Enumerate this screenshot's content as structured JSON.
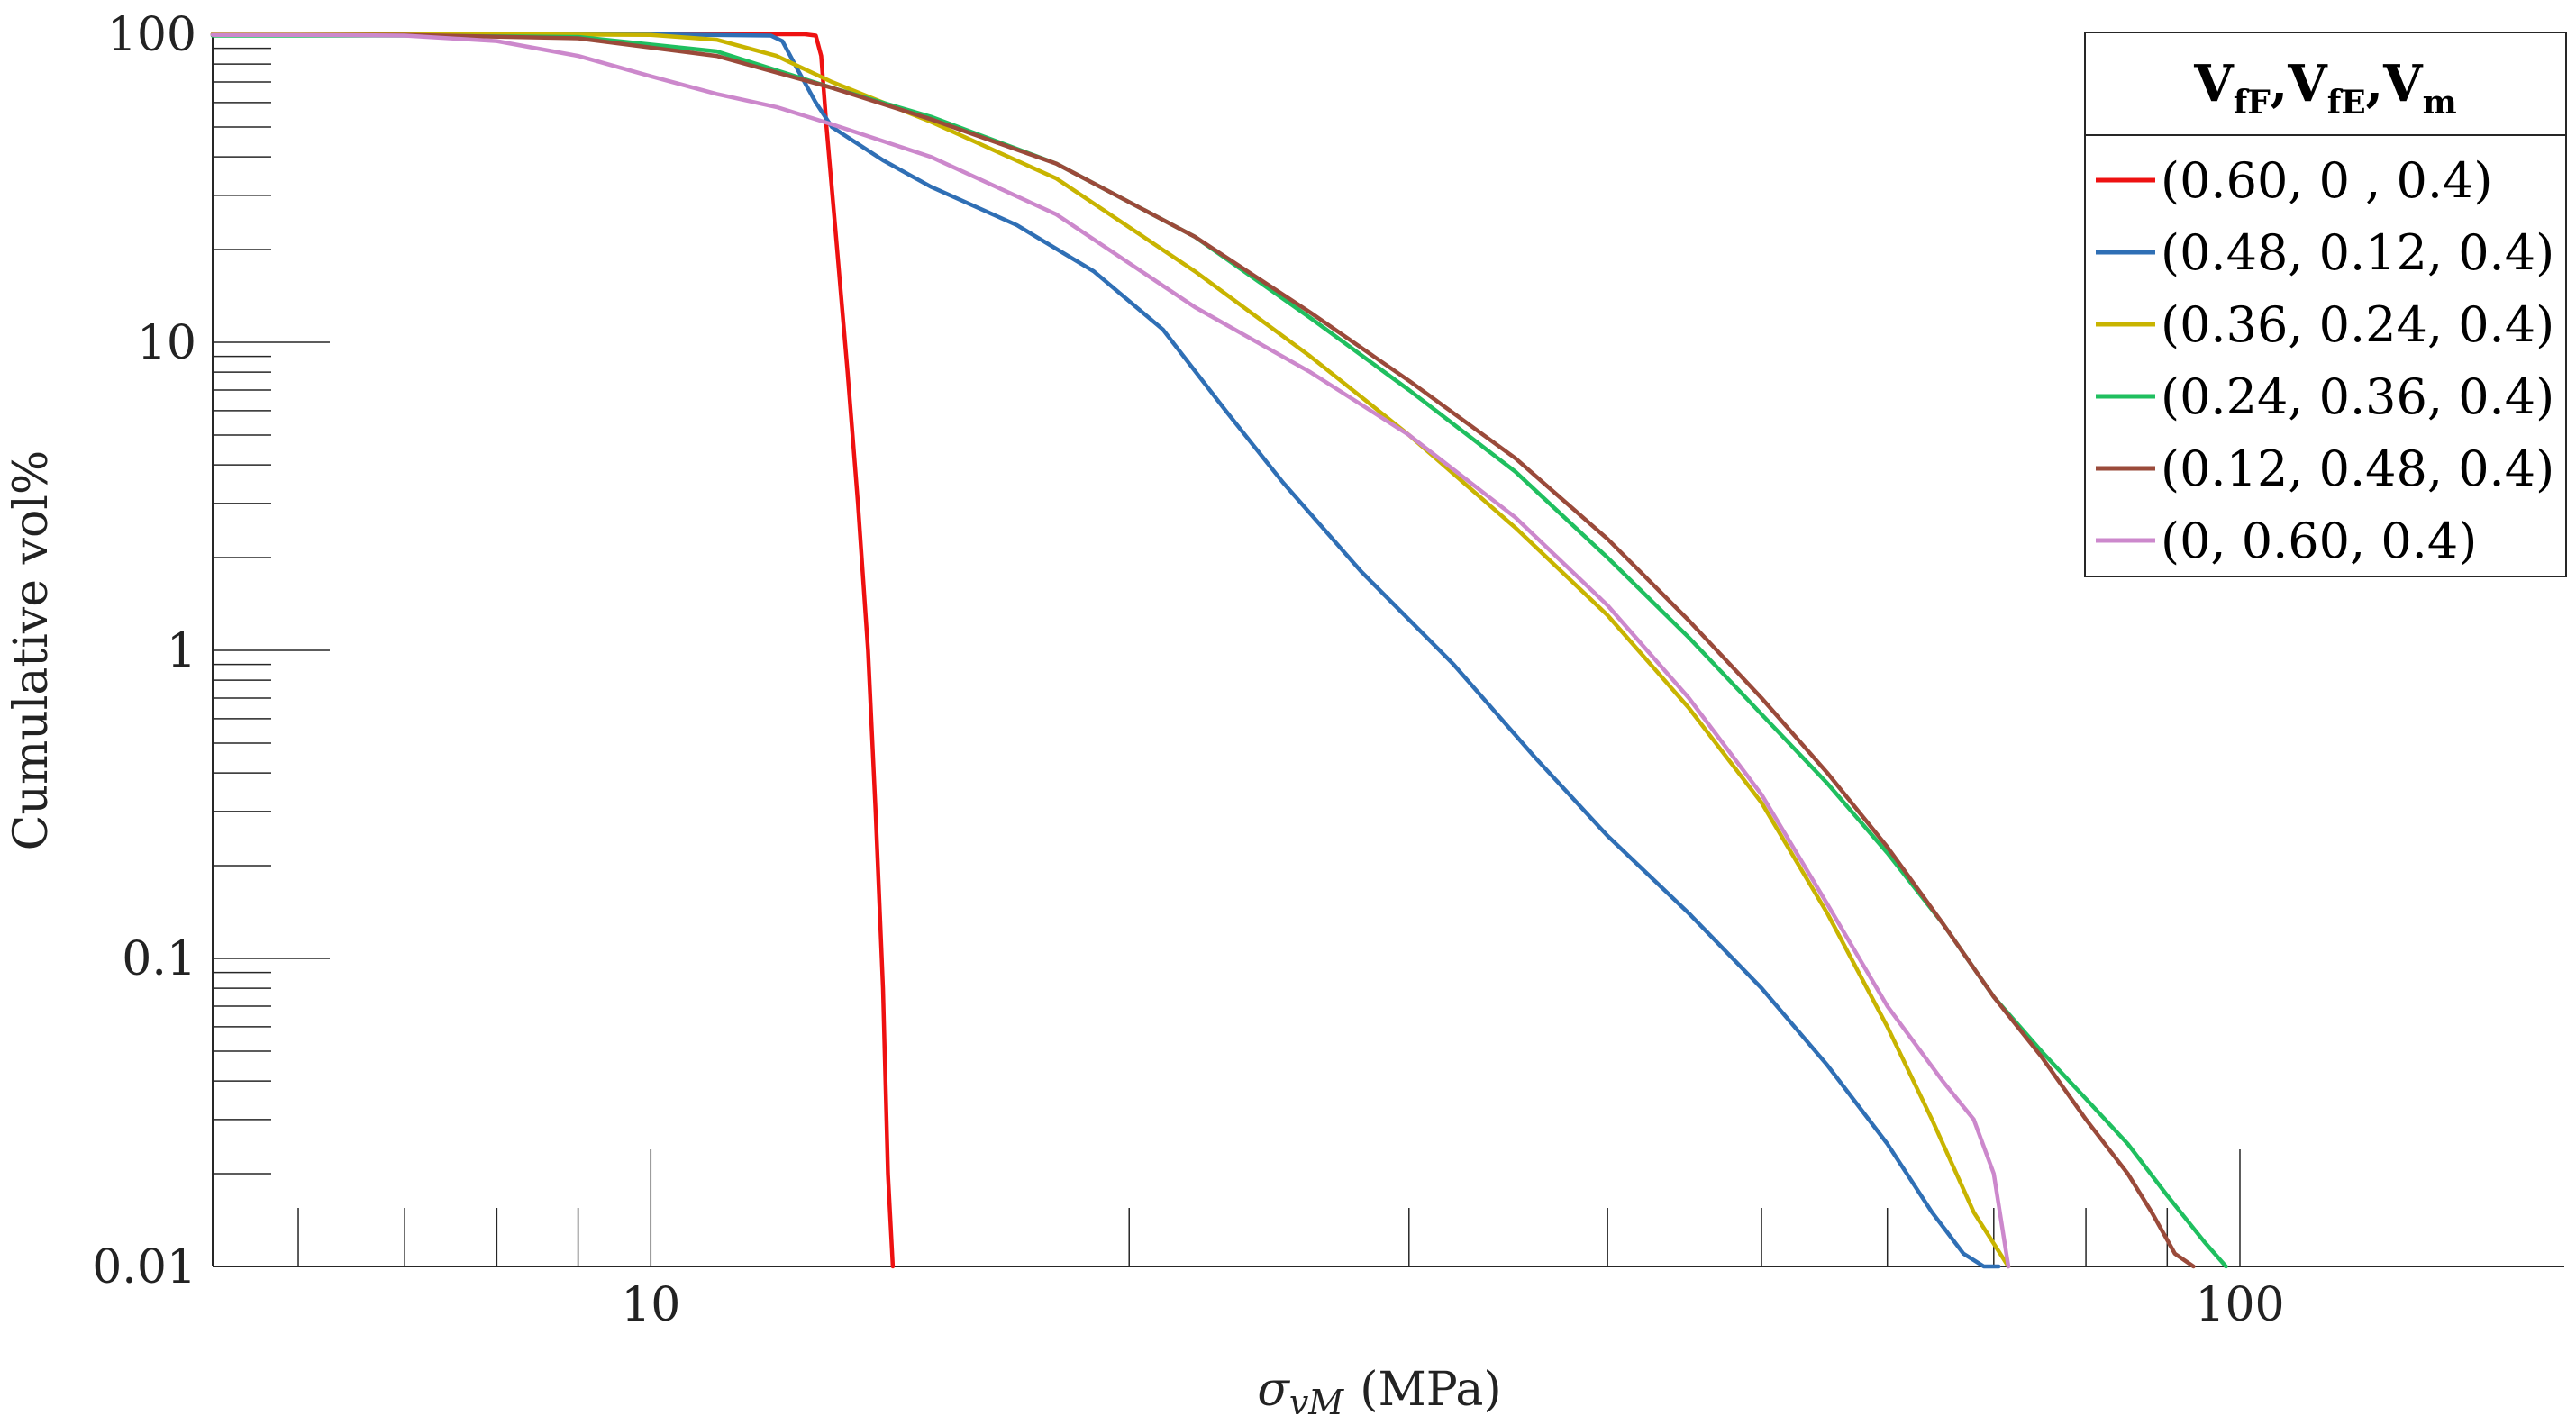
{
  "chart_data": {
    "type": "line",
    "x_scale": "log",
    "y_scale": "log",
    "xlim": [
      5.3,
      160
    ],
    "ylim": [
      0.01,
      100
    ],
    "grid": false,
    "xlabel_symbol": "σ",
    "xlabel_subscript": "vM",
    "xlabel_unit": "(MPa)",
    "ylabel": "Cumulative vol%",
    "x_tick_labels": [
      {
        "value": 10,
        "label": "10"
      },
      {
        "value": 100,
        "label": "100"
      }
    ],
    "y_tick_labels": [
      {
        "value": 100,
        "label": "100"
      },
      {
        "value": 10,
        "label": "10"
      },
      {
        "value": 1,
        "label": "1"
      },
      {
        "value": 0.1,
        "label": "0.1"
      },
      {
        "value": 0.01,
        "label": "0.01"
      }
    ],
    "legend": {
      "placement": "top-right",
      "title_parts": [
        {
          "main": "V",
          "sub": "fF"
        },
        {
          "main": ",V",
          "sub": "fE"
        },
        {
          "main": ",V",
          "sub": "m"
        }
      ]
    },
    "series": [
      {
        "name": "(0.60, 0 , 0.4)",
        "color": "#ee1111",
        "x": [
          5.3,
          10,
          12.5,
          12.7,
          12.8,
          12.9,
          13.1,
          13.3,
          13.5,
          13.7,
          13.85,
          14,
          14.1,
          14.2
        ],
        "y": [
          100,
          100,
          100,
          99,
          85,
          50,
          20,
          8,
          3,
          1,
          0.3,
          0.08,
          0.02,
          0.01
        ]
      },
      {
        "name": "(0.48, 0.12, 0.4)",
        "color": "#2f6fb5",
        "x": [
          5.3,
          10,
          11.9,
          12.1,
          12.4,
          12.7,
          13,
          14,
          15,
          17,
          19,
          21,
          23,
          25,
          28,
          32,
          36,
          40,
          45,
          50,
          55,
          60,
          64,
          67,
          69,
          70.5
        ],
        "y": [
          100,
          100,
          99,
          95,
          75,
          60,
          50,
          39,
          32,
          24,
          17,
          11,
          6,
          3.5,
          1.8,
          0.9,
          0.45,
          0.25,
          0.14,
          0.08,
          0.045,
          0.025,
          0.015,
          0.011,
          0.01,
          0.01
        ]
      },
      {
        "name": "(0.36, 0.24, 0.4)",
        "color": "#c8b400",
        "x": [
          5.3,
          8,
          10,
          11,
          12,
          13,
          15,
          18,
          22,
          26,
          30,
          35,
          40,
          45,
          50,
          55,
          60,
          64,
          68,
          71.5
        ],
        "y": [
          100,
          100,
          99.5,
          96,
          85,
          70,
          52,
          34,
          17,
          9,
          5,
          2.5,
          1.3,
          0.65,
          0.32,
          0.14,
          0.06,
          0.03,
          0.015,
          0.01
        ]
      },
      {
        "name": "(0.24, 0.36, 0.4)",
        "color": "#1fbf5f",
        "x": [
          5.3,
          7,
          9,
          11,
          13,
          15,
          18,
          22,
          26,
          30,
          35,
          40,
          45,
          50,
          55,
          60,
          65,
          70,
          75,
          80,
          85,
          90,
          95,
          98
        ],
        "y": [
          99,
          99,
          98,
          88,
          67,
          54,
          38,
          22,
          12,
          7,
          3.8,
          2,
          1.1,
          0.62,
          0.37,
          0.22,
          0.13,
          0.075,
          0.05,
          0.035,
          0.025,
          0.017,
          0.012,
          0.01
        ]
      },
      {
        "name": "(0.12, 0.48, 0.4)",
        "color": "#9a4a3a",
        "x": [
          5.3,
          7,
          9,
          11,
          13,
          15,
          18,
          22,
          26,
          30,
          35,
          40,
          45,
          50,
          55,
          60,
          65,
          70,
          75,
          80,
          85,
          88,
          91,
          93.5
        ],
        "y": [
          99.5,
          99.5,
          97,
          85,
          67,
          53,
          38,
          22,
          12.5,
          7.5,
          4.2,
          2.3,
          1.25,
          0.7,
          0.4,
          0.23,
          0.13,
          0.075,
          0.048,
          0.03,
          0.02,
          0.015,
          0.011,
          0.01
        ]
      },
      {
        "name": "(0, 0.60, 0.4)",
        "color": "#cc88cc",
        "x": [
          5.3,
          6,
          7,
          8,
          9,
          10,
          11,
          12,
          13,
          15,
          18,
          22,
          26,
          30,
          35,
          40,
          45,
          50,
          55,
          60,
          65,
          68,
          70,
          71.5
        ],
        "y": [
          99.5,
          99.5,
          99,
          95,
          85,
          73,
          64,
          58,
          51,
          40,
          26,
          13,
          8,
          5,
          2.7,
          1.4,
          0.7,
          0.34,
          0.15,
          0.07,
          0.04,
          0.03,
          0.02,
          0.01
        ]
      }
    ]
  }
}
